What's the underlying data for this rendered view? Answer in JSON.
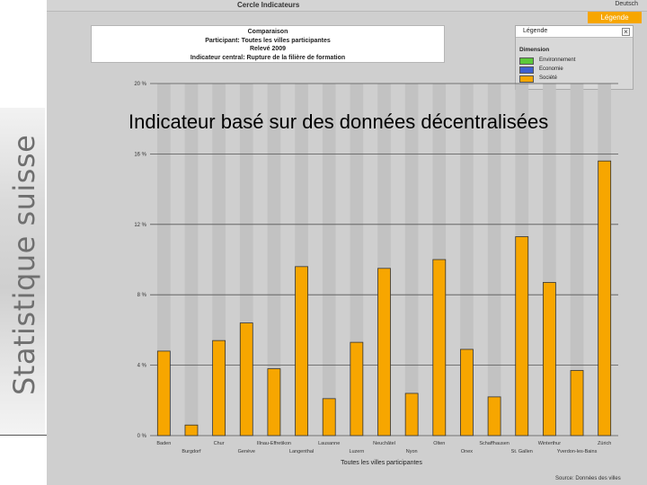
{
  "app": {
    "title": "Cercle Indicateurs",
    "language_link": "Deutsch",
    "legend_tab": "Légende"
  },
  "info_box": {
    "lines": [
      "Comparaison",
      "Participant: Toutes les villes participantes",
      "Relevé 2009",
      "Indicateur central: Rupture de la filière de formation"
    ]
  },
  "legend": {
    "title": "Légende",
    "close_symbol": "×",
    "dimension_label": "Dimension",
    "items": [
      {
        "label": "Environnement",
        "color": "#5cc93a"
      },
      {
        "label": "Economie",
        "color": "#3e5fcf"
      },
      {
        "label": "Société",
        "color": "#f7a600"
      }
    ]
  },
  "slide_title": "Indicateur basé sur des données décentralisées",
  "brand": "Statistique suisse",
  "source_note": "Source: Données des villes",
  "colors": {
    "bar": "#f7a600",
    "column_band": "#c2c2c2",
    "background": "#cfcfcf"
  },
  "chart_data": {
    "type": "bar",
    "title": "",
    "xlabel": "Toutes les villes participantes",
    "ylabel": "",
    "ylim": [
      0,
      20
    ],
    "yticks": [
      0,
      4,
      8,
      12,
      16,
      20
    ],
    "ytick_labels": [
      "0 %",
      "4 %",
      "8 %",
      "12 %",
      "16 %",
      "20 %"
    ],
    "categories": [
      "Baden",
      "Burgdorf",
      "Chur",
      "Genève",
      "Illnau-Effretikon",
      "Langenthal",
      "Lausanne",
      "Luzern",
      "Neuchâtel",
      "Nyon",
      "Olten",
      "Onex",
      "Schaffhausen",
      "St. Gallen",
      "Winterthur",
      "Yverdon-les-Bains",
      "Zürich"
    ],
    "values": [
      4.8,
      0.6,
      5.4,
      6.4,
      3.8,
      9.6,
      2.1,
      5.3,
      9.5,
      2.4,
      10.0,
      4.9,
      2.2,
      11.3,
      8.7,
      3.7,
      15.6
    ],
    "series": [
      {
        "name": "Société",
        "color": "#f7a600"
      }
    ]
  }
}
